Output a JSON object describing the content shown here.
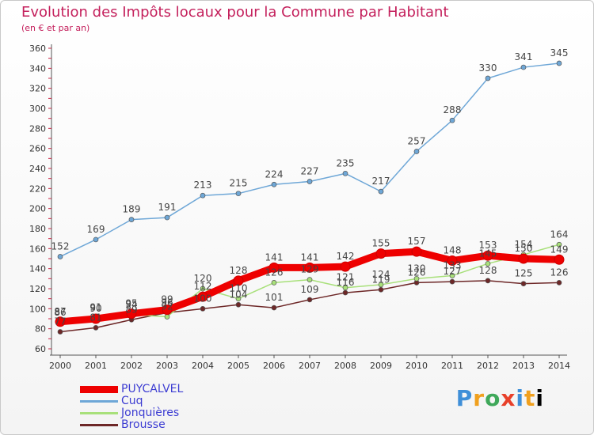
{
  "header": {
    "title": "Evolution des Impôts locaux pour la Commune par Habitant",
    "subtitle": "(en € et par an)"
  },
  "logo": {
    "text": "Proxiti"
  },
  "chart_data": {
    "type": "line",
    "title": "Evolution des Impôts locaux pour la Commune par Habitant",
    "subtitle": "(en € et par an)",
    "x": [
      2000,
      2001,
      2002,
      2003,
      2004,
      2005,
      2006,
      2007,
      2008,
      2009,
      2010,
      2011,
      2012,
      2013,
      2014
    ],
    "ylim": [
      60,
      360
    ],
    "yticks": [
      60,
      80,
      100,
      120,
      140,
      160,
      180,
      200,
      220,
      240,
      260,
      280,
      300,
      320,
      340,
      360
    ],
    "grid": false,
    "legend_position": "bottom-left",
    "series": [
      {
        "name": "PUYCALVEL",
        "color": "#ee0000",
        "values": [
          87,
          90,
          95,
          99,
          112,
          128,
          141,
          141,
          142,
          155,
          157,
          148,
          153,
          150,
          149
        ]
      },
      {
        "name": "Cuq",
        "color": "#6ea7d7",
        "values": [
          152,
          169,
          189,
          191,
          213,
          215,
          224,
          227,
          235,
          217,
          257,
          288,
          330,
          341,
          345
        ]
      },
      {
        "name": "Jonquières",
        "color": "#a8e07a",
        "values": [
          86,
          91,
          94,
          92,
          120,
          110,
          126,
          129,
          121,
          124,
          130,
          133,
          145,
          154,
          164
        ]
      },
      {
        "name": "Brousse",
        "color": "#6d2727",
        "values": [
          77,
          81,
          89,
          96,
          100,
          104,
          101,
          109,
          116,
          119,
          126,
          127,
          128,
          125,
          126
        ]
      }
    ]
  }
}
